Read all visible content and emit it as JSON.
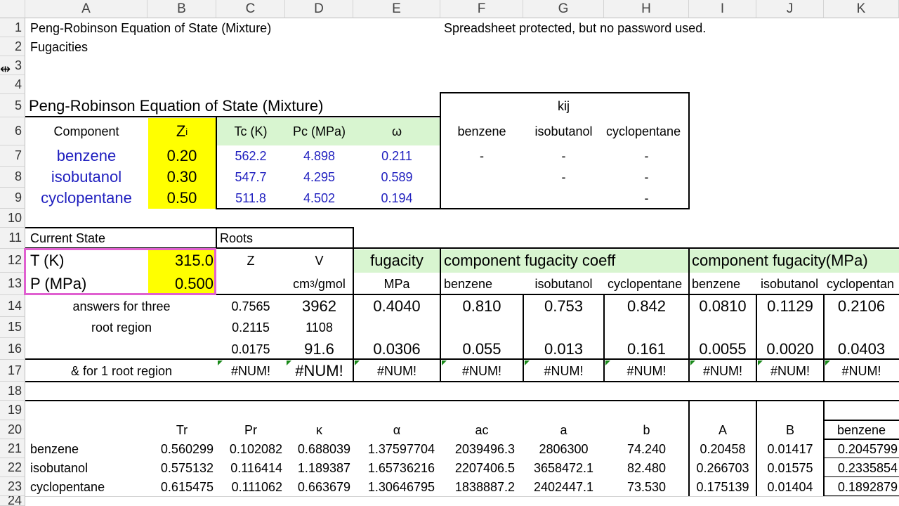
{
  "columns": [
    "A",
    "B",
    "C",
    "D",
    "E",
    "F",
    "G",
    "H",
    "I",
    "J",
    "K"
  ],
  "rows": [
    "1",
    "2",
    "3",
    "4",
    "5",
    "6",
    "7",
    "8",
    "9",
    "10",
    "11",
    "12",
    "13",
    "14",
    "15",
    "16",
    "17",
    "18",
    "19",
    "20",
    "21",
    "22",
    "23",
    "24"
  ],
  "r1": {
    "title": "Peng-Robinson Equation of State (Mixture)",
    "note": "Spreadsheet protected, but no password used."
  },
  "r2": {
    "fugacities": "Fugacities"
  },
  "r5": {
    "title": "Peng-Robinson Equation of State (Mixture)",
    "kij": "kij"
  },
  "r6": {
    "component": "Component",
    "z": "Z",
    "z_sub": "i",
    "tc": "Tc (K)",
    "pc": "Pc (MPa)",
    "omega": "ω",
    "kij_cols": [
      "benzene",
      "isobutanol",
      "cyclopentane"
    ]
  },
  "components": [
    {
      "name": "benzene",
      "z": "0.20",
      "tc": "562.2",
      "pc": "4.898",
      "omega": "0.211",
      "k": [
        "-",
        "-",
        "-"
      ]
    },
    {
      "name": "isobutanol",
      "z": "0.30",
      "tc": "547.7",
      "pc": "4.295",
      "omega": "0.589",
      "k": [
        "",
        "-",
        "-"
      ]
    },
    {
      "name": "cyclopentane",
      "z": "0.50",
      "tc": "511.8",
      "pc": "4.502",
      "omega": "0.194",
      "k": [
        "",
        "",
        "-"
      ]
    }
  ],
  "r11": {
    "current_state": "Current State",
    "roots": "Roots"
  },
  "r12": {
    "t_label": "T (K)",
    "t_value": "315.0",
    "z": "Z",
    "v": "V",
    "fugacity": "fugacity",
    "comp_coeff": "component fugacity coeff",
    "comp_fug": "component fugacity(MPa)"
  },
  "r13": {
    "p_label": "P (MPa)",
    "p_value": "0.500",
    "v_unit": "cm",
    "v_sup": "3",
    "v_unit2": "/gmol",
    "mpa": "MPa",
    "names": [
      "benzene",
      "isobutanol",
      "cyclopentane"
    ],
    "names2": [
      "benzene",
      "isobutanol",
      "cyclopentan"
    ]
  },
  "r14": {
    "label": "answers for three",
    "z": "0.7565",
    "v": "3962",
    "fug": "0.4040",
    "coeff": [
      "0.810",
      "0.753",
      "0.842"
    ],
    "cfug": [
      "0.0810",
      "0.1129",
      "0.2106"
    ]
  },
  "r15": {
    "label": "root region",
    "z": "0.2115",
    "v": "1108"
  },
  "r16": {
    "z": "0.0175",
    "v": "91.6",
    "fug": "0.0306",
    "coeff": [
      "0.055",
      "0.013",
      "0.161"
    ],
    "cfug": [
      "0.0055",
      "0.0020",
      "0.0403"
    ]
  },
  "r17": {
    "label": "& for 1 root region",
    "err": "#NUM!"
  },
  "r20": {
    "tr": "Tr",
    "pr": "Pr",
    "kappa": "κ",
    "alpha": "α",
    "ac": "ac",
    "a": "a",
    "b": "b",
    "A": "A",
    "B": "B",
    "k": "benzene"
  },
  "table": [
    {
      "name": "benzene",
      "tr": "0.560299",
      "pr": "0.102082",
      "kappa": "0.688039",
      "alpha": "1.37597704",
      "ac": "2039496.3",
      "a": "2806300",
      "b": "74.240",
      "A": "0.20458",
      "B": "0.01417",
      "k": "0.2045799"
    },
    {
      "name": "isobutanol",
      "tr": "0.575132",
      "pr": "0.116414",
      "kappa": "1.189387",
      "alpha": "1.65736216",
      "ac": "2207406.5",
      "a": "3658472.1",
      "b": "82.480",
      "A": "0.266703",
      "B": "0.01575",
      "k": "0.2335854"
    },
    {
      "name": "cyclopentane",
      "tr": "0.615475",
      "pr": "0.111062",
      "kappa": "0.663679",
      "alpha": "1.30646795",
      "ac": "1838887.2",
      "a": "2402447.1",
      "b": "73.530",
      "A": "0.175139",
      "B": "0.01404",
      "k": "0.1892879"
    }
  ],
  "colors": {
    "yellow": "#ffff00",
    "green": "#d8f5d0",
    "blue": "#1f1fbf",
    "magenta": "#e060d0",
    "error_marker": "#1a8a1a"
  }
}
